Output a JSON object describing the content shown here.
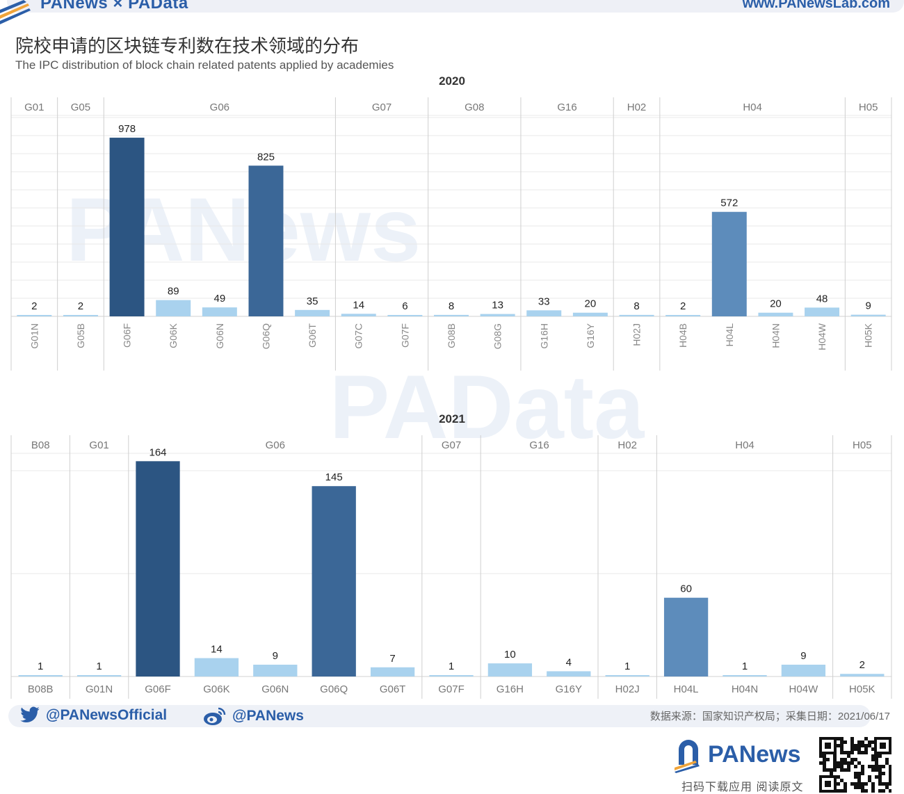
{
  "header": {
    "brand": "PANews × PAData",
    "website": "www.PANewsLab.com"
  },
  "title_zh": "院校申请的区块链专利数在技术领域的分布",
  "title_en": "The IPC distribution of block chain related patents applied by academies",
  "watermarks": [
    "PANews",
    "PAData"
  ],
  "colors": {
    "dark": "#2c5582",
    "mid": "#3b6797",
    "medium": "#5d8cbb",
    "light": "#a9d2ee",
    "grid": "#e8e8e8",
    "divider": "#cfcfcf",
    "brand": "#2b5ea8"
  },
  "chart_data": [
    {
      "type": "bar",
      "title": "2020",
      "groups": [
        {
          "name": "G01",
          "categories": [
            "G01N"
          ],
          "values": [
            2
          ]
        },
        {
          "name": "G05",
          "categories": [
            "G05B"
          ],
          "values": [
            2
          ]
        },
        {
          "name": "G06",
          "categories": [
            "G06F",
            "G06K",
            "G06N",
            "G06Q",
            "G06T"
          ],
          "values": [
            978,
            89,
            49,
            825,
            35
          ]
        },
        {
          "name": "G07",
          "categories": [
            "G07C",
            "G07F"
          ],
          "values": [
            14,
            6
          ]
        },
        {
          "name": "G08",
          "categories": [
            "G08B",
            "G08G"
          ],
          "values": [
            8,
            13
          ]
        },
        {
          "name": "G16",
          "categories": [
            "G16H",
            "G16Y"
          ],
          "values": [
            33,
            20
          ]
        },
        {
          "name": "H02",
          "categories": [
            "H02J"
          ],
          "values": [
            8
          ]
        },
        {
          "name": "H04",
          "categories": [
            "H04B",
            "H04L",
            "H04N",
            "H04W"
          ],
          "values": [
            2,
            572,
            20,
            48
          ]
        },
        {
          "name": "H05",
          "categories": [
            "H05K"
          ],
          "values": [
            9
          ]
        }
      ],
      "ylim": [
        0,
        1100
      ],
      "grid": true,
      "tick_rotation": "vertical"
    },
    {
      "type": "bar",
      "title": "2021",
      "groups": [
        {
          "name": "B08",
          "categories": [
            "B08B"
          ],
          "values": [
            1
          ]
        },
        {
          "name": "G01",
          "categories": [
            "G01N"
          ],
          "values": [
            1
          ]
        },
        {
          "name": "G06",
          "categories": [
            "G06F",
            "G06K",
            "G06N",
            "G06Q",
            "G06T"
          ],
          "values": [
            164,
            14,
            9,
            145,
            7
          ]
        },
        {
          "name": "G07",
          "categories": [
            "G07F"
          ],
          "values": [
            1
          ]
        },
        {
          "name": "G16",
          "categories": [
            "G16H",
            "G16Y"
          ],
          "values": [
            10,
            4
          ]
        },
        {
          "name": "H02",
          "categories": [
            "H02J"
          ],
          "values": [
            1
          ]
        },
        {
          "name": "H04",
          "categories": [
            "H04L",
            "H04N",
            "H04W"
          ],
          "values": [
            60,
            1,
            9
          ]
        },
        {
          "name": "H05",
          "categories": [
            "H05K"
          ],
          "values": [
            2
          ]
        }
      ],
      "ylim": [
        0,
        170
      ],
      "grid": true,
      "tick_rotation": "horizontal"
    }
  ],
  "footer": {
    "twitter": "@PANewsOfficial",
    "weibo": "@PANews",
    "source": "数据来源：国家知识产权局；采集日期：2021/06/17",
    "logo": "PANews",
    "slogan": "扫码下载应用 阅读原文"
  }
}
